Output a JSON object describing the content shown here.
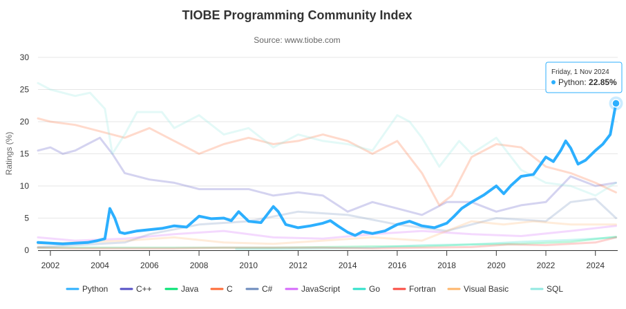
{
  "chart_data": {
    "type": "line",
    "title": "TIOBE Programming Community Index",
    "subtitle": "Source: www.tiobe.com",
    "ylabel": "Ratings (%)",
    "xlabel": "",
    "xlim": [
      2001.5,
      2024.9
    ],
    "ylim": [
      0,
      30
    ],
    "y_ticks": [
      "0",
      "5",
      "10",
      "15",
      "20",
      "25",
      "30"
    ],
    "x_ticks": [
      "2002",
      "2004",
      "2006",
      "2008",
      "2010",
      "2012",
      "2014",
      "2016",
      "2018",
      "2020",
      "2022",
      "2024"
    ],
    "grid": "horizontal",
    "legend_position": "bottom",
    "highlight_series": "Python",
    "series": [
      {
        "name": "Python",
        "color": "#2caffe",
        "x": [
          2001.5,
          2002.0,
          2002.5,
          2003.0,
          2003.5,
          2003.9,
          2004.2,
          2004.4,
          2004.6,
          2004.8,
          2005.0,
          2005.5,
          2006.0,
          2006.5,
          2007.0,
          2007.5,
          2008.0,
          2008.5,
          2009.0,
          2009.3,
          2009.6,
          2010.0,
          2010.5,
          2011.0,
          2011.2,
          2011.5,
          2012.0,
          2012.5,
          2013.0,
          2013.3,
          2013.6,
          2014.0,
          2014.3,
          2014.6,
          2015.0,
          2015.5,
          2016.0,
          2016.5,
          2017.0,
          2017.5,
          2018.0,
          2018.3,
          2018.6,
          2019.0,
          2019.5,
          2020.0,
          2020.3,
          2020.6,
          2021.0,
          2021.5,
          2022.0,
          2022.3,
          2022.6,
          2022.8,
          2023.0,
          2023.3,
          2023.6,
          2024.0,
          2024.3,
          2024.6,
          2024.83
        ],
        "y": [
          1.2,
          1.1,
          1.0,
          1.1,
          1.2,
          1.5,
          1.8,
          6.5,
          5.0,
          2.8,
          2.6,
          3.0,
          3.2,
          3.4,
          3.8,
          3.6,
          5.3,
          4.9,
          5.0,
          4.6,
          6.0,
          4.5,
          4.3,
          6.8,
          6.0,
          4.0,
          3.5,
          3.8,
          4.2,
          4.6,
          3.8,
          2.8,
          2.3,
          2.9,
          2.6,
          3.0,
          4.0,
          4.5,
          3.8,
          3.5,
          4.2,
          5.3,
          6.5,
          7.5,
          8.6,
          10.0,
          8.8,
          10.1,
          11.5,
          11.8,
          14.5,
          13.8,
          15.5,
          17.0,
          15.9,
          13.4,
          14.0,
          15.5,
          16.5,
          18.0,
          22.85
        ]
      },
      {
        "name": "C++",
        "color": "#544fc5",
        "x": [
          2001.5,
          2002.0,
          2002.5,
          2003.0,
          2003.5,
          2004.0,
          2004.5,
          2005.0,
          2006.0,
          2007.0,
          2008.0,
          2009.0,
          2010.0,
          2011.0,
          2012.0,
          2013.0,
          2014.0,
          2015.0,
          2016.0,
          2017.0,
          2018.0,
          2019.0,
          2020.0,
          2021.0,
          2022.0,
          2023.0,
          2024.0,
          2024.83
        ],
        "y": [
          15.5,
          16.0,
          15.0,
          15.5,
          16.5,
          17.5,
          15.0,
          12.0,
          11.0,
          10.5,
          9.5,
          9.5,
          9.5,
          8.5,
          9.0,
          8.5,
          6.0,
          7.5,
          6.5,
          5.5,
          7.5,
          7.5,
          6.0,
          7.0,
          7.5,
          11.5,
          10.0,
          10.5
        ]
      },
      {
        "name": "Java",
        "color": "#00e272",
        "x": [
          2001.5,
          2003.0,
          2005.0,
          2007.0,
          2009.0,
          2011.0,
          2013.0,
          2015.0,
          2017.0,
          2019.0,
          2021.0,
          2023.0,
          2024.83
        ],
        "y": [
          0.4,
          0.4,
          0.4,
          0.4,
          0.4,
          0.4,
          0.5,
          0.6,
          0.6,
          0.9,
          1.0,
          1.3,
          2.1
        ]
      },
      {
        "name": "C",
        "color": "#fe6a35",
        "x": [
          2001.5,
          2002.0,
          2003.0,
          2004.0,
          2005.0,
          2006.0,
          2007.0,
          2008.0,
          2009.0,
          2010.0,
          2011.0,
          2012.0,
          2013.0,
          2014.0,
          2015.0,
          2016.0,
          2017.0,
          2017.7,
          2018.2,
          2019.0,
          2020.0,
          2021.0,
          2022.0,
          2023.0,
          2024.0,
          2024.83
        ],
        "y": [
          20.5,
          20.0,
          19.5,
          18.5,
          17.5,
          19.0,
          17.0,
          15.0,
          16.5,
          17.5,
          16.5,
          17.0,
          18.0,
          17.0,
          15.0,
          17.0,
          12.0,
          7.0,
          8.5,
          14.5,
          16.5,
          16.0,
          13.0,
          12.0,
          10.5,
          9.0
        ]
      },
      {
        "name": "C#",
        "color": "#6b8abc",
        "x": [
          2001.5,
          2003.0,
          2005.0,
          2006.0,
          2008.0,
          2010.0,
          2012.0,
          2014.0,
          2016.0,
          2018.0,
          2020.0,
          2022.0,
          2023.0,
          2024.0,
          2024.83
        ],
        "y": [
          0.5,
          0.8,
          1.2,
          2.5,
          4.0,
          4.5,
          6.0,
          5.5,
          4.0,
          3.0,
          5.0,
          4.5,
          7.5,
          8.0,
          5.0
        ]
      },
      {
        "name": "JavaScript",
        "color": "#d568fb",
        "x": [
          2001.5,
          2003.0,
          2005.0,
          2007.0,
          2009.0,
          2011.0,
          2013.0,
          2015.0,
          2017.0,
          2019.0,
          2021.0,
          2023.0,
          2024.83
        ],
        "y": [
          2.0,
          1.5,
          1.8,
          2.5,
          3.0,
          2.0,
          1.8,
          2.5,
          3.0,
          2.5,
          2.2,
          3.0,
          3.8
        ]
      },
      {
        "name": "Go",
        "color": "#2ee0ca",
        "x": [
          2009.5,
          2011.0,
          2013.0,
          2015.0,
          2017.0,
          2019.0,
          2021.0,
          2023.0,
          2024.83
        ],
        "y": [
          0.2,
          0.2,
          0.3,
          0.4,
          0.8,
          0.9,
          1.3,
          1.6,
          2.0
        ]
      },
      {
        "name": "Fortran",
        "color": "#fa4b42",
        "x": [
          2001.5,
          2003.0,
          2005.0,
          2007.0,
          2009.0,
          2011.0,
          2013.0,
          2015.0,
          2017.0,
          2019.0,
          2020.5,
          2022.0,
          2024.0,
          2024.83
        ],
        "y": [
          0.4,
          0.3,
          0.3,
          0.3,
          0.4,
          0.4,
          0.4,
          0.3,
          0.4,
          0.5,
          0.9,
          0.8,
          1.2,
          2.0
        ]
      },
      {
        "name": "Visual Basic",
        "color": "#feb56a",
        "x": [
          2001.5,
          2003.0,
          2005.0,
          2007.0,
          2009.0,
          2011.0,
          2013.0,
          2015.0,
          2017.0,
          2019.0,
          2020.3,
          2021.5,
          2023.0,
          2024.83
        ],
        "y": [
          1.0,
          1.2,
          1.5,
          2.0,
          1.2,
          1.0,
          1.5,
          2.0,
          1.5,
          4.5,
          4.0,
          4.5,
          4.0,
          4.0
        ]
      },
      {
        "name": "SQL",
        "color": "#91e8e1",
        "x": [
          2001.5,
          2002.0,
          2003.0,
          2003.6,
          2004.2,
          2004.5,
          2005.0,
          2005.5,
          2006.5,
          2007.0,
          2008.0,
          2009.0,
          2010.0,
          2011.0,
          2012.0,
          2013.0,
          2014.0,
          2015.0,
          2016.0,
          2016.5,
          2017.0,
          2017.7,
          2018.5,
          2019.0,
          2020.0,
          2021.0,
          2022.0,
          2023.0,
          2024.0,
          2024.83
        ],
        "y": [
          26.0,
          25.0,
          24.0,
          24.5,
          22.0,
          15.0,
          18.0,
          21.5,
          21.5,
          19.0,
          21.0,
          18.0,
          19.0,
          16.0,
          18.0,
          17.0,
          16.5,
          15.5,
          21.0,
          20.0,
          17.5,
          13.0,
          17.0,
          15.0,
          17.5,
          12.5,
          10.5,
          10.0,
          8.5,
          10.5
        ]
      }
    ],
    "tooltip": {
      "date": "Friday, 1 Nov 2024",
      "series": "Python",
      "value": "22.85%"
    }
  }
}
